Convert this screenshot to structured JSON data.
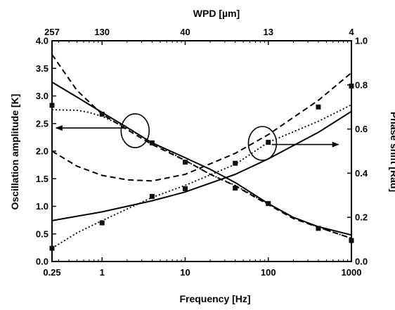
{
  "chart_data": {
    "type": "line",
    "xlabel": "Frequency [Hz]",
    "ylabel": "Oscillation amplitude [K]",
    "y2label": "Phase shift [Rad]",
    "x2label": "WPD [µm]",
    "x_scale": "log",
    "xlim": [
      0.25,
      1000
    ],
    "ylim": [
      0.0,
      4.0
    ],
    "y2lim": [
      0.0,
      1.0
    ],
    "x_ticks": [
      0.25,
      1,
      10,
      100,
      1000
    ],
    "x_tick_labels": [
      "0.25",
      "1",
      "10",
      "100",
      "1000"
    ],
    "y_ticks": [
      0.0,
      0.5,
      1.0,
      1.5,
      2.0,
      2.5,
      3.0,
      3.5,
      4.0
    ],
    "y_tick_labels": [
      "0.0",
      "0.5",
      "1.0",
      "1.5",
      "2.0",
      "2.5",
      "3.0",
      "3.5",
      "4.0"
    ],
    "y2_ticks": [
      0.0,
      0.2,
      0.4,
      0.6,
      0.8,
      1.0
    ],
    "y2_tick_labels": [
      "0.0",
      "0.2",
      "0.4",
      "0.6",
      "0.8",
      "1.0"
    ],
    "x2_ticks": [
      {
        "at": 0.25,
        "label": "257"
      },
      {
        "at": 1,
        "label": "130"
      },
      {
        "at": 10,
        "label": "40"
      },
      {
        "at": 100,
        "label": "13"
      },
      {
        "at": 1000,
        "label": "4"
      }
    ],
    "grid": false,
    "legend": "none",
    "series": [
      {
        "axis": "left",
        "style": "solid",
        "points": [
          [
            0.25,
            3.25
          ],
          [
            0.5,
            2.98
          ],
          [
            1,
            2.7
          ],
          [
            2,
            2.43
          ],
          [
            4,
            2.15
          ],
          [
            10,
            1.88
          ],
          [
            20,
            1.67
          ],
          [
            40,
            1.43
          ],
          [
            100,
            1.05
          ],
          [
            200,
            0.8
          ],
          [
            400,
            0.63
          ],
          [
            1000,
            0.48
          ]
        ]
      },
      {
        "axis": "left",
        "style": "dashed",
        "points": [
          [
            0.25,
            3.75
          ],
          [
            0.5,
            3.1
          ],
          [
            1,
            2.67
          ],
          [
            2,
            2.39
          ],
          [
            4,
            2.12
          ],
          [
            10,
            1.83
          ],
          [
            20,
            1.58
          ],
          [
            40,
            1.37
          ],
          [
            100,
            1.03
          ],
          [
            200,
            0.78
          ],
          [
            400,
            0.62
          ],
          [
            1000,
            0.42
          ]
        ]
      },
      {
        "axis": "left",
        "style": "dotted",
        "points": [
          [
            0.25,
            2.75
          ],
          [
            0.5,
            2.74
          ],
          [
            0.7,
            2.7
          ],
          [
            1,
            2.63
          ],
          [
            2,
            2.42
          ],
          [
            4,
            2.15
          ],
          [
            10,
            1.83
          ],
          [
            20,
            1.58
          ],
          [
            40,
            1.38
          ],
          [
            100,
            1.04
          ],
          [
            200,
            0.8
          ],
          [
            400,
            0.62
          ],
          [
            1000,
            0.42
          ]
        ]
      },
      {
        "axis": "left",
        "style": "markers",
        "points": [
          [
            0.25,
            2.83
          ],
          [
            1,
            2.67
          ],
          [
            4,
            2.15
          ],
          [
            10,
            1.8
          ],
          [
            40,
            1.33
          ],
          [
            100,
            1.05
          ],
          [
            400,
            0.6
          ],
          [
            1000,
            0.38
          ]
        ]
      },
      {
        "axis": "right",
        "style": "solid",
        "points": [
          [
            0.25,
            0.185
          ],
          [
            1,
            0.225
          ],
          [
            4,
            0.275
          ],
          [
            10,
            0.315
          ],
          [
            40,
            0.395
          ],
          [
            100,
            0.465
          ],
          [
            400,
            0.585
          ],
          [
            1000,
            0.68
          ]
        ]
      },
      {
        "axis": "right",
        "style": "dashed",
        "points": [
          [
            0.25,
            0.5
          ],
          [
            0.5,
            0.432
          ],
          [
            1,
            0.39
          ],
          [
            2,
            0.37
          ],
          [
            4,
            0.365
          ],
          [
            10,
            0.395
          ],
          [
            40,
            0.49
          ],
          [
            100,
            0.575
          ],
          [
            400,
            0.73
          ],
          [
            1000,
            0.855
          ]
        ]
      },
      {
        "axis": "right",
        "style": "dotted",
        "points": [
          [
            0.25,
            0.06
          ],
          [
            0.5,
            0.13
          ],
          [
            1,
            0.185
          ],
          [
            4,
            0.29
          ],
          [
            10,
            0.345
          ],
          [
            40,
            0.44
          ],
          [
            100,
            0.54
          ],
          [
            400,
            0.635
          ],
          [
            1000,
            0.71
          ]
        ]
      },
      {
        "axis": "right",
        "style": "markers",
        "points": [
          [
            0.25,
            0.06
          ],
          [
            1,
            0.175
          ],
          [
            4,
            0.295
          ],
          [
            10,
            0.33
          ],
          [
            40,
            0.445
          ],
          [
            100,
            0.54
          ],
          [
            400,
            0.7
          ],
          [
            1000,
            0.795
          ]
        ]
      }
    ],
    "annotations": [
      {
        "type": "ellipse",
        "x": 2.5,
        "y": 2.37,
        "axis": "left"
      },
      {
        "type": "arrow",
        "axis": "left",
        "from": [
          2.0,
          2.42
        ],
        "to": [
          0.28,
          2.42
        ]
      },
      {
        "type": "ellipse",
        "x": 85,
        "y": 0.535,
        "axis": "right"
      },
      {
        "type": "arrow",
        "axis": "right",
        "from": [
          110,
          0.53
        ],
        "to": [
          700,
          0.53
        ]
      }
    ]
  }
}
